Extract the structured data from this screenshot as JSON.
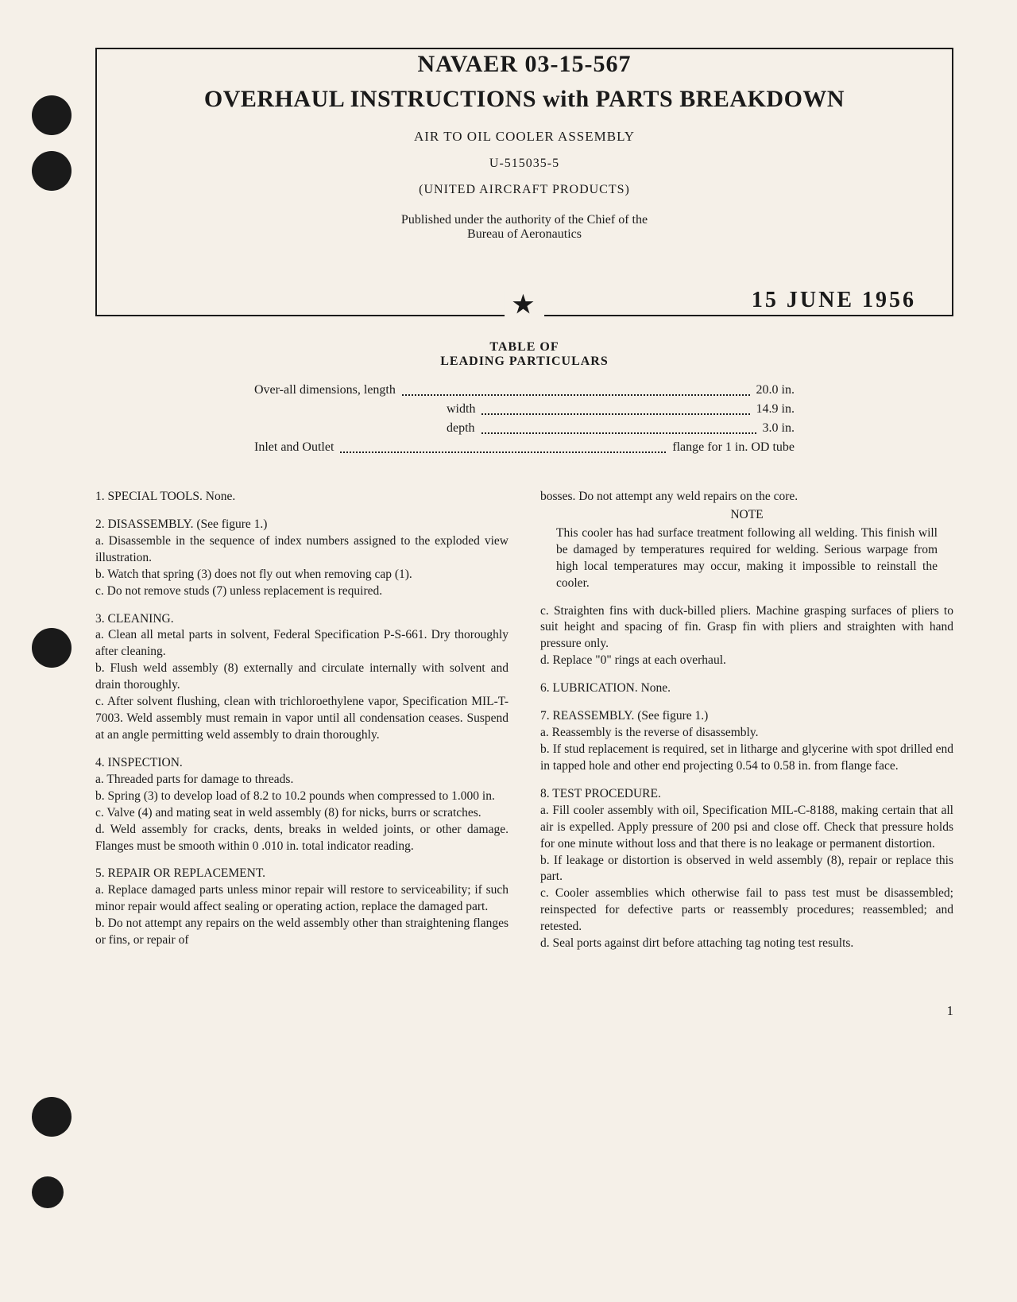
{
  "header": {
    "docNumber": "NAVAER 03-15-567",
    "mainTitle": "OVERHAUL INSTRUCTIONS with PARTS BREAKDOWN",
    "subTitle": "AIR TO OIL COOLER ASSEMBLY",
    "partNumber": "U-515035-5",
    "company": "(UNITED AIRCRAFT PRODUCTS)",
    "authorityLine1": "Published under the authority of the Chief of the",
    "authorityLine2": "Bureau of Aeronautics",
    "star": "★",
    "date": "15 JUNE  1956"
  },
  "tableHeading1": "TABLE OF",
  "tableHeading2": "LEADING PARTICULARS",
  "particulars": [
    {
      "label": "Over-all dimensions, length",
      "value": "20.0 in.",
      "indent": false
    },
    {
      "label": "width",
      "value": "14.9 in.",
      "indent": true
    },
    {
      "label": "depth",
      "value": "3.0 in.",
      "indent": true
    },
    {
      "label": "Inlet and Outlet",
      "value": "flange for 1 in. OD tube",
      "indent": false
    }
  ],
  "col1": {
    "s1": "1. SPECIAL TOOLS. None.",
    "s2title": "2. DISASSEMBLY. (See figure 1.)",
    "s2a": "a. Disassemble in the sequence of index numbers assigned to the exploded view illustration.",
    "s2b": "b. Watch that spring (3) does not fly out when removing cap (1).",
    "s2c": "c. Do not remove studs (7) unless replacement is required.",
    "s3title": "3. CLEANING.",
    "s3a": "a. Clean all metal parts in solvent, Federal Specification P-S-661. Dry thoroughly after cleaning.",
    "s3b": "b. Flush weld assembly (8) externally and circulate internally with solvent and drain thoroughly.",
    "s3c": "c. After solvent flushing, clean with trichloroethylene vapor, Specification MIL-T-7003. Weld assembly must remain in vapor until all condensation ceases. Suspend at an angle permitting weld assembly to drain thoroughly.",
    "s4title": "4. INSPECTION.",
    "s4a": "a. Threaded parts for damage to threads.",
    "s4b": "b. Spring (3) to develop load of 8.2 to 10.2 pounds when compressed to 1.000 in.",
    "s4c": "c. Valve (4) and mating seat in weld assembly (8) for nicks, burrs or scratches.",
    "s4d": "d. Weld assembly for cracks, dents, breaks in welded joints, or other damage. Flanges must be smooth within 0 .010 in. total indicator reading.",
    "s5title": "5. REPAIR OR REPLACEMENT.",
    "s5a": "a. Replace damaged parts unless minor repair will restore to serviceability; if such minor repair would affect sealing or operating action, replace the damaged part.",
    "s5b": "b. Do not attempt any repairs on the weld assembly other than straightening flanges or fins, or repair of"
  },
  "col2": {
    "cont": "bosses. Do not attempt any weld repairs on the core.",
    "noteHeading": "NOTE",
    "noteBody": "This cooler has had surface treatment following all welding. This finish will be damaged by temperatures required for welding. Serious warpage from high local temperatures may occur, making it impossible to reinstall the cooler.",
    "s5c": "c. Straighten fins with duck-billed pliers. Machine grasping surfaces of pliers to suit height and spacing of fin. Grasp fin with pliers and straighten with hand pressure only.",
    "s5d": "d. Replace \"0\" rings at each overhaul.",
    "s6": "6. LUBRICATION. None.",
    "s7title": "7. REASSEMBLY. (See figure 1.)",
    "s7a": "a. Reassembly is the reverse of disassembly.",
    "s7b": "b. If stud replacement is required, set in litharge and glycerine with spot drilled end in tapped hole and other end projecting 0.54 to 0.58 in. from flange face.",
    "s8title": "8. TEST PROCEDURE.",
    "s8a": "a. Fill cooler assembly with oil, Specification MIL-C-8188, making certain that all air is expelled. Apply pressure of 200 psi and close off. Check that pressure holds for one minute without loss and that there is no leakage or permanent distortion.",
    "s8b": "b. If leakage or distortion is observed in weld assembly (8), repair or replace this part.",
    "s8c": "c. Cooler assemblies which otherwise fail to pass test must be disassembled; reinspected for defective parts or reassembly procedures; reassembled; and retested.",
    "s8d": "d. Seal ports against dirt before attaching tag noting test results."
  },
  "pageNumber": "1"
}
